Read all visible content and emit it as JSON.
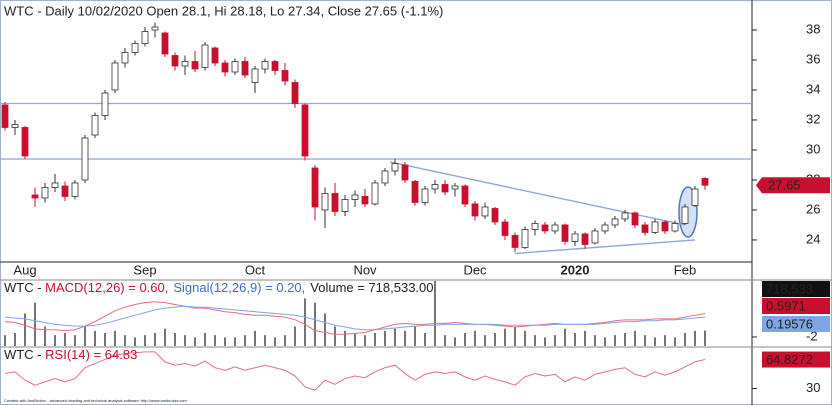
{
  "chart_data": [
    {
      "type": "candlestick",
      "title": "WTC - Daily 10/02/2020 Open 28.1, Hi 28.18, Lo 27.34, Close 27.65 (-1.1%)",
      "categories": [
        null,
        null,
        "Aug",
        null,
        null,
        null,
        null,
        null,
        null,
        null,
        null,
        null,
        null,
        null,
        "Sep",
        null,
        null,
        null,
        null,
        null,
        null,
        null,
        null,
        null,
        null,
        "Oct",
        null,
        null,
        null,
        null,
        null,
        null,
        null,
        null,
        null,
        null,
        "Nov",
        null,
        null,
        null,
        null,
        null,
        null,
        null,
        null,
        null,
        null,
        "Dec",
        null,
        null,
        null,
        null,
        null,
        null,
        null,
        null,
        null,
        "2020",
        null,
        null,
        null,
        null,
        null,
        null,
        null,
        null,
        null,
        null,
        "Feb",
        null,
        null
      ],
      "open": [
        33,
        31.5,
        31.5,
        27,
        26.8,
        27.5,
        27.6,
        26.9,
        28,
        31,
        32.3,
        34,
        35.8,
        36.5,
        37.1,
        38,
        37.8,
        36.3,
        35.6,
        35.9,
        35.5,
        36.8,
        35.8,
        35.2,
        35.9,
        34.5,
        35.4,
        35.9,
        35.3,
        34.5,
        33,
        28.8,
        26,
        27.1,
        25.9,
        26.7,
        26.9,
        26.4,
        27.8,
        28.6,
        29,
        27.9,
        26.5,
        27.4,
        27.7,
        27.4,
        27.6,
        26.4,
        25.6,
        26.1,
        25.2,
        24.3,
        23.5,
        24.7,
        25,
        24.6,
        25,
        23.9,
        24.4,
        23.8,
        24.6,
        25,
        25.4,
        25.8,
        25,
        24.5,
        25.2,
        24.6,
        25.1,
        26.3,
        28.1
      ],
      "high": [
        33.2,
        32,
        31.6,
        27.5,
        27.8,
        28.4,
        27.9,
        28,
        31,
        32.5,
        34,
        36,
        36.8,
        37.3,
        38.2,
        38.5,
        37.9,
        36.5,
        36.3,
        36.6,
        37.2,
        36.9,
        36,
        36.1,
        36.2,
        35.6,
        36.1,
        36,
        35.8,
        34.7,
        33.1,
        29,
        27.5,
        27.8,
        27,
        27.3,
        27.4,
        28,
        28.8,
        29.4,
        29.2,
        28,
        27.6,
        28,
        28,
        27.8,
        27.7,
        26.6,
        26.5,
        26.2,
        25.4,
        24.5,
        24.9,
        25.3,
        25.2,
        25.2,
        25.1,
        24.6,
        24.5,
        24.8,
        25.2,
        25.6,
        26,
        25.9,
        25.2,
        25.4,
        25.3,
        25.3,
        26.4,
        27.6,
        28.18
      ],
      "low": [
        31.3,
        31,
        29.4,
        26.2,
        26.5,
        27.2,
        26.6,
        26.7,
        27.8,
        30.8,
        32,
        33.8,
        35.5,
        36.3,
        36.9,
        37.5,
        36.2,
        35.3,
        35,
        35.2,
        35.3,
        35.6,
        34.9,
        35,
        34.8,
        33.8,
        35.1,
        35,
        34.3,
        32.8,
        29.3,
        25.3,
        24.8,
        25.6,
        25.6,
        26.2,
        26.2,
        26.3,
        27.6,
        28.3,
        27.8,
        26.3,
        26.3,
        27.1,
        27,
        26.9,
        26.2,
        25.3,
        25.4,
        25,
        24,
        23.2,
        23.4,
        24.3,
        24.4,
        24.4,
        23.7,
        23.6,
        23.4,
        23.7,
        24.4,
        24.8,
        25.2,
        24.8,
        24.3,
        24.4,
        24.4,
        24.5,
        25,
        26.2,
        27.34
      ],
      "close": [
        31.5,
        31.7,
        29.6,
        26.8,
        27.5,
        27.8,
        26.9,
        27.8,
        30.8,
        32.3,
        33.8,
        35.8,
        36.5,
        37.1,
        37.9,
        38.2,
        36.4,
        35.6,
        35.9,
        35.4,
        37,
        35.8,
        35.2,
        35.9,
        35,
        35.4,
        35.9,
        35.3,
        34.6,
        33.1,
        29.6,
        26.2,
        27.1,
        25.9,
        26.7,
        27,
        26.4,
        27.8,
        28.6,
        29.1,
        28,
        26.5,
        27.4,
        27.7,
        27.2,
        27.6,
        26.4,
        25.6,
        26.2,
        25.2,
        24.3,
        23.5,
        24.7,
        25.1,
        24.6,
        25,
        23.9,
        24.4,
        23.7,
        24.6,
        25,
        25.4,
        25.8,
        25,
        24.5,
        25.2,
        24.6,
        25.1,
        26.2,
        27.4,
        27.65
      ],
      "up_color": "#ffffff",
      "down_color": "#c8102e",
      "ylim": [
        22.53,
        40
      ],
      "yticks": [
        24,
        26,
        28,
        30,
        32,
        34,
        36,
        38
      ],
      "hlines": [
        33.1,
        29.4
      ],
      "trendlines": [
        {
          "x": [
            38.5,
            68
          ],
          "y": [
            29.2,
            25
          ]
        },
        {
          "x": [
            51,
            69
          ],
          "y": [
            23.1,
            24
          ]
        }
      ],
      "line_color": "#8fa8d4",
      "footer": "Created with AmiBroker - advanced charting and technical analysis software. http://www.amibroker.com"
    },
    {
      "type": "macd",
      "title_parts": [
        {
          "text": "WTC - ",
          "color": "#222222"
        },
        {
          "text": "MACD(12,26) = 0.60,",
          "color": "#c8102e"
        },
        {
          "text": "Signal(12,26,9) = 0.20,",
          "color": "#3a6fc4"
        },
        {
          "text": "Volume = 718,533.00",
          "color": "#222222"
        }
      ],
      "series": [
        {
          "color": "#e07080",
          "values": [
            -0.3,
            -0.4,
            -0.7,
            -1.1,
            -1.2,
            -1.2,
            -1.3,
            -1.2,
            -0.8,
            -0.3,
            0.3,
            0.9,
            1.3,
            1.6,
            1.8,
            1.9,
            1.8,
            1.6,
            1.4,
            1.2,
            1.2,
            1.0,
            0.8,
            0.7,
            0.5,
            0.4,
            0.4,
            0.3,
            0.2,
            -0.1,
            -0.6,
            -1.3,
            -1.5,
            -1.7,
            -1.7,
            -1.6,
            -1.5,
            -1.2,
            -0.9,
            -0.6,
            -0.5,
            -0.6,
            -0.6,
            -0.5,
            -0.5,
            -0.4,
            -0.5,
            -0.6,
            -0.6,
            -0.7,
            -0.8,
            -0.9,
            -0.8,
            -0.7,
            -0.6,
            -0.5,
            -0.6,
            -0.6,
            -0.6,
            -0.5,
            -0.4,
            -0.2,
            -0.1,
            -0.1,
            -0.1,
            0,
            0,
            0,
            0.2,
            0.4,
            0.5971
          ]
        },
        {
          "color": "#7fa6e0",
          "values": [
            0.2,
            0.1,
            0,
            -0.2,
            -0.4,
            -0.6,
            -0.7,
            -0.8,
            -0.8,
            -0.7,
            -0.5,
            -0.2,
            0.1,
            0.4,
            0.7,
            1.0,
            1.2,
            1.3,
            1.4,
            1.3,
            1.3,
            1.2,
            1.1,
            1.0,
            0.9,
            0.8,
            0.7,
            0.6,
            0.5,
            0.4,
            0.2,
            -0.1,
            -0.4,
            -0.7,
            -0.9,
            -1.1,
            -1.2,
            -1.2,
            -1.1,
            -1.0,
            -0.9,
            -0.8,
            -0.7,
            -0.7,
            -0.6,
            -0.6,
            -0.6,
            -0.6,
            -0.6,
            -0.6,
            -0.7,
            -0.7,
            -0.7,
            -0.7,
            -0.7,
            -0.6,
            -0.6,
            -0.6,
            -0.6,
            -0.6,
            -0.5,
            -0.4,
            -0.3,
            -0.3,
            -0.2,
            -0.2,
            -0.1,
            -0.1,
            0,
            0.1,
            0.19576
          ]
        },
        {
          "color": "#444444",
          "axis": "y2",
          "values": [
            500000,
            600000,
            1500000,
            2000000,
            900000,
            500000,
            600000,
            500000,
            900000,
            700000,
            600000,
            700000,
            500000,
            400000,
            500000,
            600000,
            800000,
            600000,
            500000,
            400000,
            600000,
            500000,
            400000,
            400000,
            500000,
            700000,
            500000,
            400000,
            500000,
            900000,
            2200000,
            2000000,
            1500000,
            900000,
            700000,
            600000,
            500000,
            600000,
            700000,
            800000,
            700000,
            900000,
            600000,
            3000000,
            500000,
            400000,
            600000,
            700000,
            500000,
            600000,
            800000,
            900000,
            700000,
            500000,
            400000,
            500000,
            800000,
            600000,
            700000,
            500000,
            400000,
            500000,
            600000,
            700000,
            500000,
            400000,
            500000,
            400000,
            600000,
            700000,
            718533
          ],
          "last_label": "718,533"
        }
      ],
      "ylim": [
        -3,
        4.2
      ],
      "yticks": [
        -2
      ],
      "y2lim": [
        0,
        3000000
      ]
    },
    {
      "type": "rsi",
      "title_parts": [
        {
          "text": "WTC - ",
          "color": "#222222"
        },
        {
          "text": "RSI(14) = 64.83",
          "color": "#c8102e"
        }
      ],
      "color": "#e07080",
      "values": [
        48,
        50,
        40,
        34,
        38,
        42,
        38,
        42,
        55,
        60,
        65,
        70,
        72,
        73,
        74,
        74,
        62,
        58,
        60,
        57,
        63,
        55,
        52,
        56,
        52,
        55,
        58,
        55,
        52,
        45,
        32,
        28,
        40,
        35,
        42,
        45,
        43,
        50,
        55,
        58,
        48,
        40,
        47,
        50,
        48,
        50,
        44,
        40,
        45,
        41,
        38,
        34,
        44,
        48,
        45,
        47,
        38,
        44,
        40,
        47,
        50,
        53,
        55,
        47,
        44,
        50,
        46,
        50,
        56,
        62,
        64.8272
      ],
      "ylim": [
        12.6,
        78.7
      ],
      "yticks": [
        30
      ]
    }
  ]
}
